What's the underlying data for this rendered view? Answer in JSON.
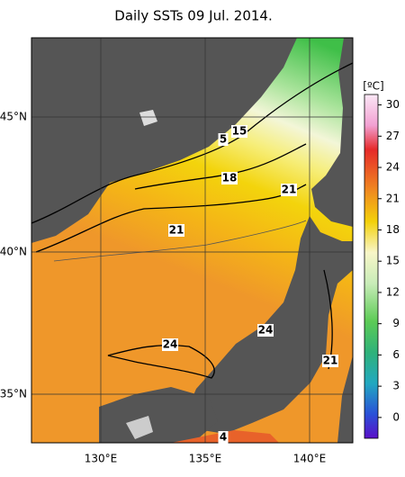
{
  "title": "Daily SSTs 09 Jul. 2014.",
  "lat_labels": [
    "45°N",
    "40°N",
    "35°N"
  ],
  "lon_labels": [
    "130°E",
    "135°E",
    "140°E"
  ],
  "colorbar": {
    "unit": "[ºC]",
    "range": [
      -2,
      31
    ],
    "ticks": [
      30,
      27,
      24,
      21,
      18,
      15,
      12,
      9,
      6,
      3,
      0
    ]
  },
  "contour_labels": [
    "5",
    "15",
    "18",
    "21",
    "21",
    "24",
    "24",
    "21",
    "4"
  ]
}
